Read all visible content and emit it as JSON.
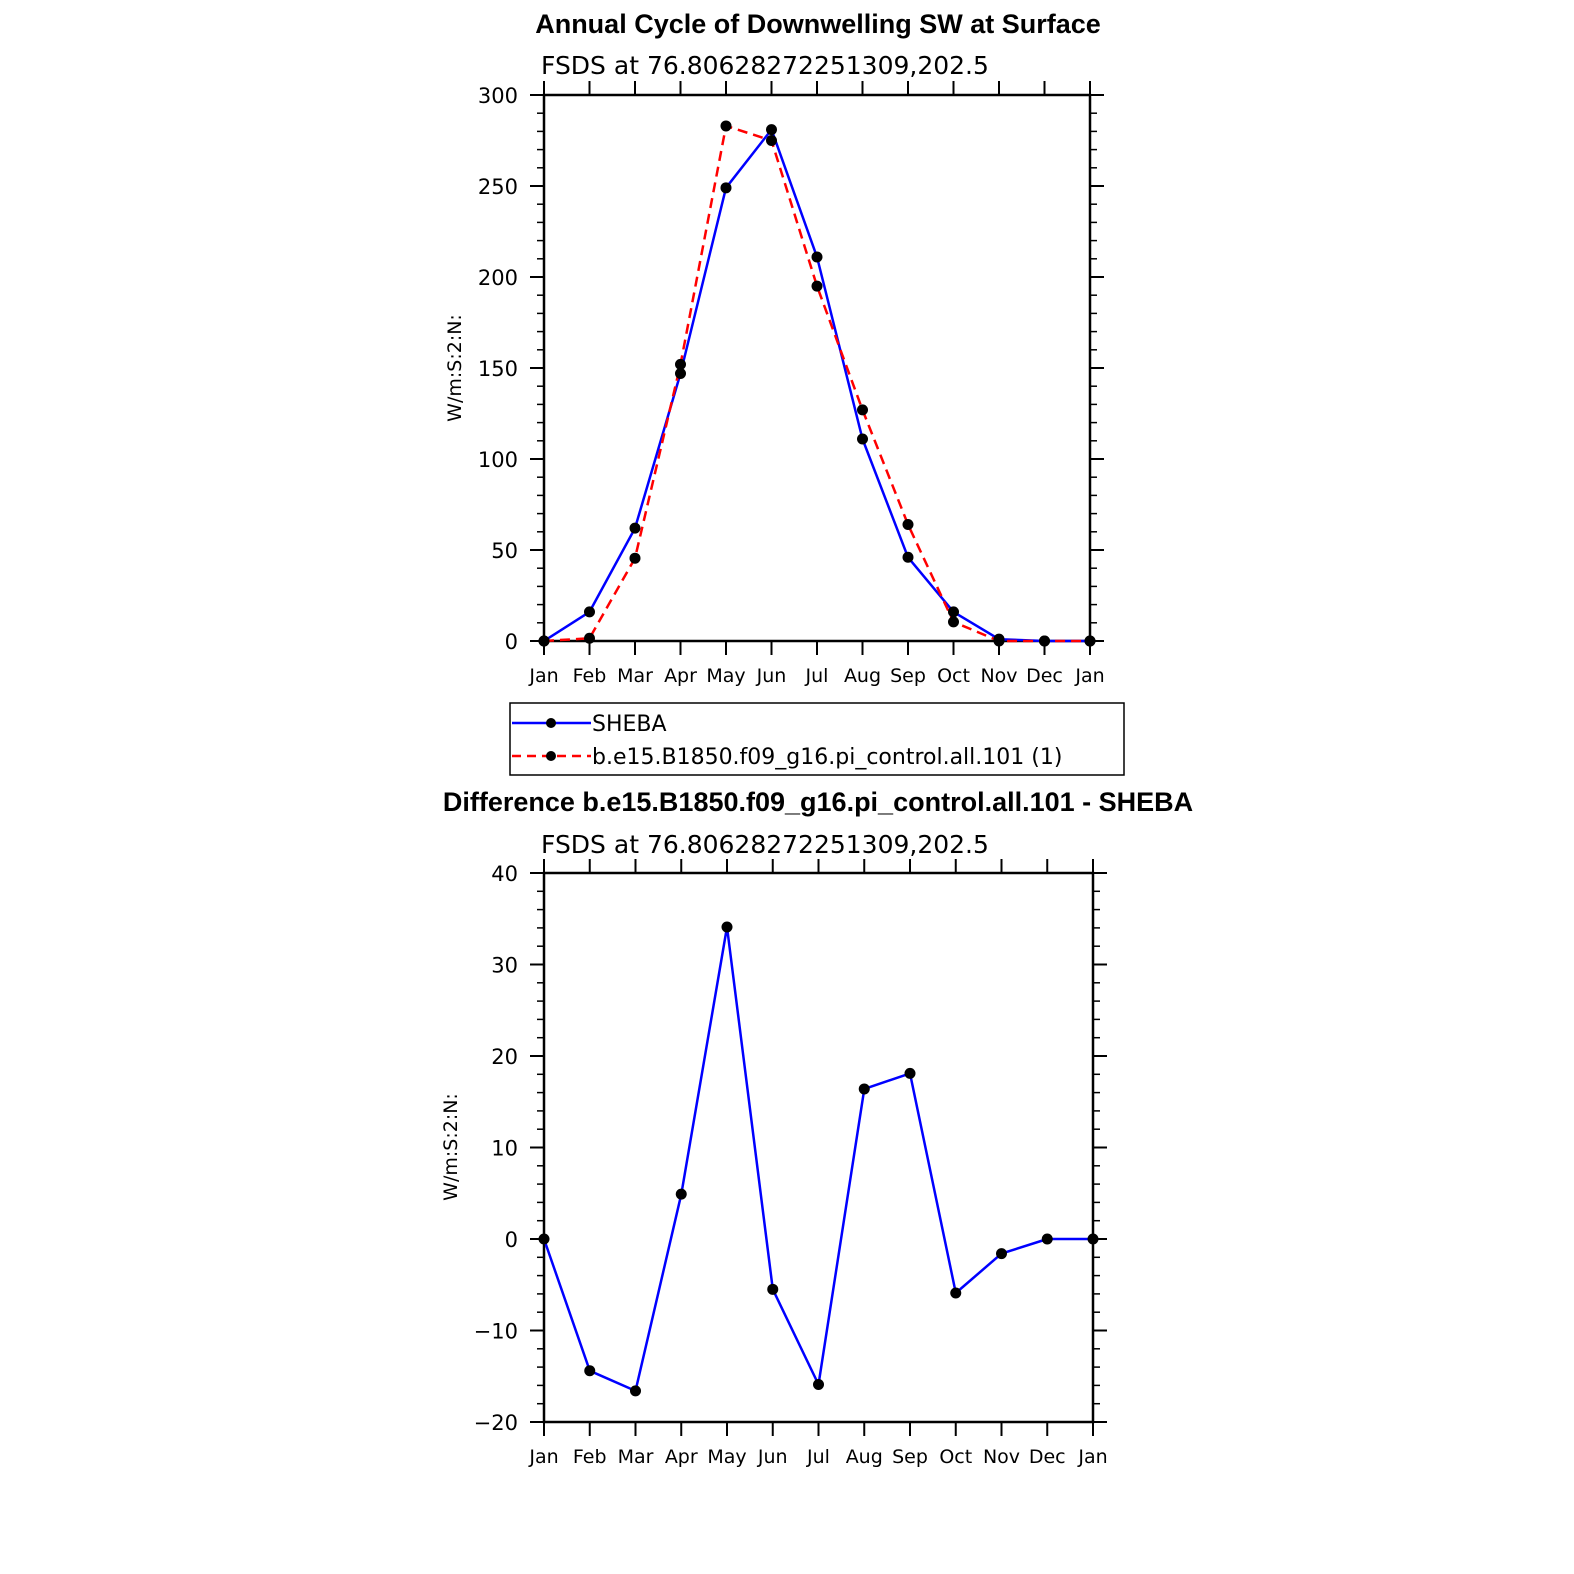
{
  "chart_data": [
    {
      "type": "line",
      "title": "Annual Cycle of Downwelling SW at Surface",
      "subtitle": "FSDS at 76.80628272251309,202.5",
      "ylabel": "W/m:S:2:N:",
      "xlabel": "",
      "ylim": [
        0,
        300
      ],
      "yticks": [
        "0",
        "50",
        "100",
        "150",
        "200",
        "250",
        "300"
      ],
      "categories": [
        "Jan",
        "Feb",
        "Mar",
        "Apr",
        "May",
        "Jun",
        "Jul",
        "Aug",
        "Sep",
        "Oct",
        "Nov",
        "Dec",
        "Jan"
      ],
      "legend_position": "below",
      "series": [
        {
          "name": "SHEBA",
          "color": "#0000ff",
          "dash": "solid",
          "values": [
            0,
            16,
            62,
            147,
            249,
            281,
            211,
            111,
            46,
            16,
            1,
            0,
            0
          ]
        },
        {
          "name": "b.e15.B1850.f09_g16.pi_control.all.101 (1)",
          "color": "#ff0000",
          "dash": "dashed",
          "values": [
            0,
            1.5,
            45.5,
            152,
            283,
            275,
            195,
            127,
            64,
            10.5,
            0,
            0,
            0
          ]
        }
      ]
    },
    {
      "type": "line",
      "title": "Difference b.e15.B1850.f09_g16.pi_control.all.101 - SHEBA",
      "subtitle": "FSDS at 76.80628272251309,202.5",
      "ylabel": "W/m:S:2:N:",
      "xlabel": "",
      "ylim": [
        -20,
        40
      ],
      "yticks": [
        "−20",
        "−10",
        "0",
        "10",
        "20",
        "30",
        "40"
      ],
      "categories": [
        "Jan",
        "Feb",
        "Mar",
        "Apr",
        "May",
        "Jun",
        "Jul",
        "Aug",
        "Sep",
        "Oct",
        "Nov",
        "Dec",
        "Jan"
      ],
      "series": [
        {
          "color": "#0000ff",
          "dash": "solid",
          "values": [
            0,
            -14.4,
            -16.6,
            4.9,
            34.1,
            -5.5,
            -15.9,
            16.4,
            18.1,
            -5.9,
            -1.6,
            0,
            0
          ]
        }
      ]
    }
  ]
}
